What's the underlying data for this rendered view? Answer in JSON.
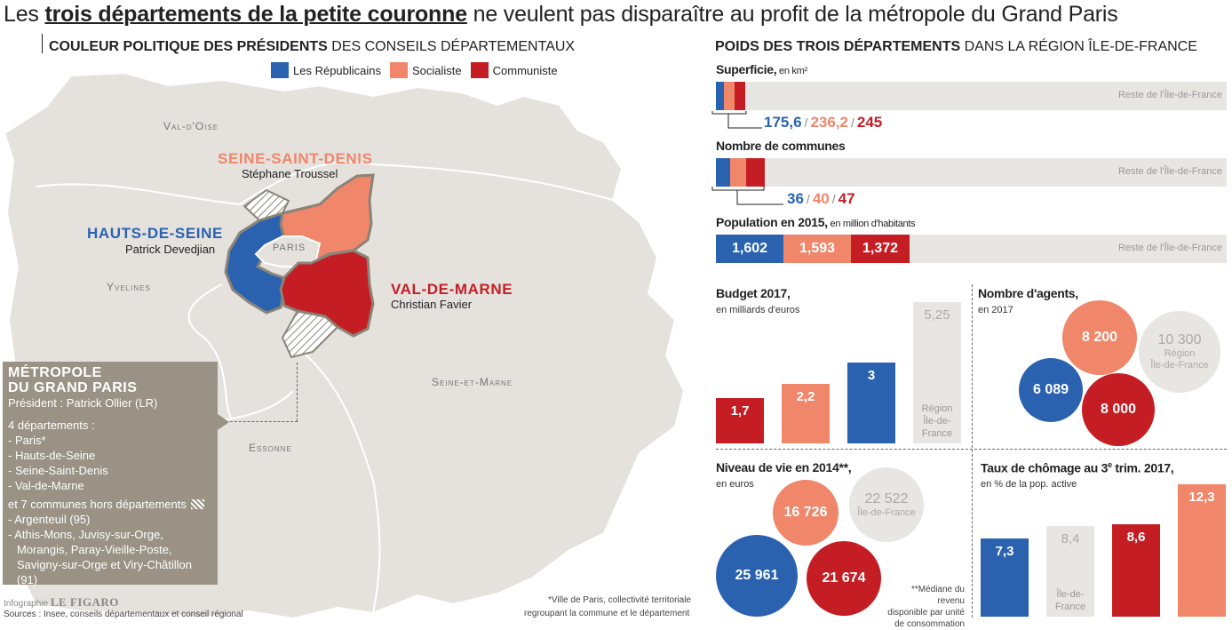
{
  "title": {
    "pre": "Les ",
    "bold": "trois départements de la petite couronne",
    "post": " ne veulent pas disparaître au profit de la métropole du Grand Paris"
  },
  "left": {
    "heading_bold": "COULEUR POLITIQUE DES PRÉSIDENTS",
    "heading_rest": " DES CONSEILS DÉPARTEMENTAUX",
    "legend": [
      {
        "label": "Les Républicains",
        "color": "#2a62b0"
      },
      {
        "label": "Socialiste",
        "color": "#f0866a"
      },
      {
        "label": "Communiste",
        "color": "#c41e24"
      }
    ],
    "regions": {
      "val_doise": "Val-d'Oise",
      "yvelines": "Yvelines",
      "essonne": "Essonne",
      "seine_et_marne": "Seine-et-Marne",
      "paris": "PARIS"
    },
    "departments": {
      "ssd": {
        "name": "SEINE-SAINT-DENIS",
        "president": "Stéphane Troussel",
        "color": "#f0866a"
      },
      "hds": {
        "name": "HAUTS-DE-SEINE",
        "president": "Patrick Devedjian",
        "color": "#2a62b0"
      },
      "vdm": {
        "name": "VAL-DE-MARNE",
        "president": "Christian Favier",
        "color": "#c41e24"
      }
    },
    "metropole": {
      "title1": "MÉTROPOLE",
      "title2": "DU GRAND PARIS",
      "president": "Président : Patrick Ollier (LR)",
      "depts_head": "4 départements :",
      "depts": [
        "- Paris*",
        "- Hauts-de-Seine",
        "- Seine-Saint-Denis",
        "- Val-de-Marne"
      ],
      "communes_head": "et 7 communes hors départements",
      "communes": [
        "- Argenteuil (95)",
        "- Athis-Mons, Juvisy-sur-Orge,",
        "Morangis, Paray-Vieille-Poste,",
        "Savigny-sur-Orge et Viry-Châtillon (91)"
      ]
    },
    "footnote1": "*Ville de Paris, collectivité territoriale",
    "footnote2": "regroupant la commune et le département",
    "credit_prefix": "Infographie",
    "credit_brand": "LE FIGARO",
    "sources": "Sources : Insee, conseils départementaux et conseil régional"
  },
  "right": {
    "heading_bold": "POIDS DES TROIS DÉPARTEMENTS",
    "heading_rest": " DANS LA RÉGION ÎLE-DE-FRANCE",
    "rest_label": "Reste de l'Île-de-France",
    "superficie": {
      "label": "Superficie,",
      "unit": " en km²",
      "vals": [
        "175,6",
        "236,2",
        "245"
      ]
    },
    "communes": {
      "label": "Nombre de communes",
      "vals": [
        "36",
        "40",
        "47"
      ]
    },
    "population": {
      "label": "Population en 2015,",
      "unit": " en million d'habitants",
      "vals": [
        "1,602",
        "1,593",
        "1,372"
      ]
    },
    "budget": {
      "label": "Budget 2017,",
      "sub": "en milliards d'euros",
      "region_note": [
        "Région",
        "Île-de-",
        "France"
      ]
    },
    "agents": {
      "label": "Nombre d'agents,",
      "sub": "en 2017",
      "region_note": [
        "Région",
        "Île-de-France"
      ]
    },
    "niveau": {
      "label": "Niveau de vie en 2014**,",
      "sub": "en euros",
      "region_note": "Île-de-France",
      "note": [
        "**Médiane du revenu",
        "disponible par unité",
        "de consommation"
      ]
    },
    "chomage": {
      "label": "Taux de chômage au 3",
      "label_sup": "e",
      "label_end": " trim. 2017,",
      "sub": "en % de la pop. active",
      "region_note": [
        "Île-de-",
        "France"
      ]
    }
  },
  "chart_data": [
    {
      "type": "bar",
      "title": "Superficie, en km²",
      "categories": [
        "Hauts-de-Seine",
        "Seine-Saint-Denis",
        "Val-de-Marne"
      ],
      "values": [
        175.6,
        236.2,
        245
      ],
      "colors": [
        "#2a62b0",
        "#f0866a",
        "#c41e24"
      ]
    },
    {
      "type": "bar",
      "title": "Nombre de communes",
      "categories": [
        "Hauts-de-Seine",
        "Seine-Saint-Denis",
        "Val-de-Marne"
      ],
      "values": [
        36,
        40,
        47
      ]
    },
    {
      "type": "bar",
      "title": "Population en 2015, en million d'habitants",
      "categories": [
        "Hauts-de-Seine",
        "Seine-Saint-Denis",
        "Val-de-Marne"
      ],
      "values": [
        1.602,
        1.593,
        1.372
      ]
    },
    {
      "type": "bar",
      "title": "Budget 2017, en milliards d'euros",
      "categories": [
        "Val-de-Marne",
        "Seine-Saint-Denis",
        "Hauts-de-Seine",
        "Région Île-de-France"
      ],
      "values": [
        1.7,
        2.2,
        3,
        5.25
      ],
      "labels": [
        "1,7",
        "2,2",
        "3",
        "5,25"
      ],
      "colors": [
        "#c41e24",
        "#f0866a",
        "#2a62b0",
        "#e8e6e3"
      ],
      "ylim": [
        0,
        5.25
      ]
    },
    {
      "type": "scatter",
      "title": "Nombre d'agents, en 2017",
      "categories": [
        "Seine-Saint-Denis",
        "Hauts-de-Seine",
        "Val-de-Marne",
        "Région Île-de-France"
      ],
      "values": [
        8200,
        6089,
        8000,
        10300
      ],
      "labels": [
        "8 200",
        "6 089",
        "8 000",
        "10 300"
      ],
      "colors": [
        "#f0866a",
        "#2a62b0",
        "#c41e24",
        "#e8e6e3"
      ]
    },
    {
      "type": "scatter",
      "title": "Niveau de vie en 2014**, en euros",
      "categories": [
        "Seine-Saint-Denis",
        "Hauts-de-Seine",
        "Val-de-Marne",
        "Île-de-France"
      ],
      "values": [
        16726,
        25961,
        21674,
        22522
      ],
      "labels": [
        "16 726",
        "25 961",
        "21 674",
        "22 522"
      ],
      "colors": [
        "#f0866a",
        "#2a62b0",
        "#c41e24",
        "#e8e6e3"
      ]
    },
    {
      "type": "bar",
      "title": "Taux de chômage au 3e trim. 2017, en % de la pop. active",
      "categories": [
        "Hauts-de-Seine",
        "Île-de-France",
        "Val-de-Marne",
        "Seine-Saint-Denis"
      ],
      "values": [
        7.3,
        8.4,
        8.6,
        12.3
      ],
      "labels": [
        "7,3",
        "8,4",
        "8,6",
        "12,3"
      ],
      "colors": [
        "#2a62b0",
        "#e8e6e3",
        "#c41e24",
        "#f0866a"
      ],
      "ylim": [
        0,
        12.3
      ]
    }
  ]
}
